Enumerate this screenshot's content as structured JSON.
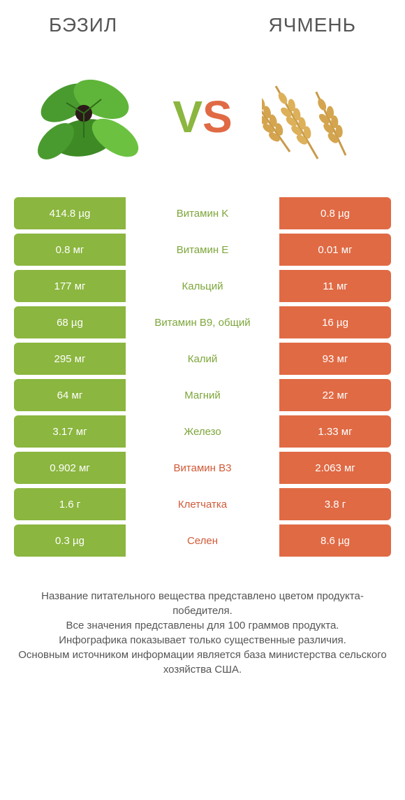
{
  "header": {
    "left": "БЭЗИЛ",
    "right": "ЯЧМЕНЬ"
  },
  "vs": {
    "v": "V",
    "s": "S"
  },
  "colors": {
    "green": "#8bb63f",
    "orange": "#e06a44",
    "green_text": "#7da63a",
    "orange_text": "#d05a38",
    "row_bg_white": "#ffffff"
  },
  "rows": [
    {
      "left": "414.8 µg",
      "mid": "Витамин K",
      "right": "0.8 µg",
      "winner": "left"
    },
    {
      "left": "0.8 мг",
      "mid": "Витамин E",
      "right": "0.01 мг",
      "winner": "left"
    },
    {
      "left": "177 мг",
      "mid": "Кальций",
      "right": "11 мг",
      "winner": "left"
    },
    {
      "left": "68 µg",
      "mid": "Витамин B9, общий",
      "right": "16 µg",
      "winner": "left"
    },
    {
      "left": "295 мг",
      "mid": "Калий",
      "right": "93 мг",
      "winner": "left"
    },
    {
      "left": "64 мг",
      "mid": "Магний",
      "right": "22 мг",
      "winner": "left"
    },
    {
      "left": "3.17 мг",
      "mid": "Железо",
      "right": "1.33 мг",
      "winner": "left"
    },
    {
      "left": "0.902 мг",
      "mid": "Витамин B3",
      "right": "2.063 мг",
      "winner": "right"
    },
    {
      "left": "1.6 г",
      "mid": "Клетчатка",
      "right": "3.8 г",
      "winner": "right"
    },
    {
      "left": "0.3 µg",
      "mid": "Селен",
      "right": "8.6 µg",
      "winner": "right"
    }
  ],
  "footer": {
    "line1": "Название питательного вещества представлено цветом продукта-победителя.",
    "line2": "Все значения представлены для 100 граммов продукта.",
    "line3": "Инфографика показывает только существенные различия.",
    "line4": "Основным источником информации является база министерства сельского хозяйства США."
  }
}
